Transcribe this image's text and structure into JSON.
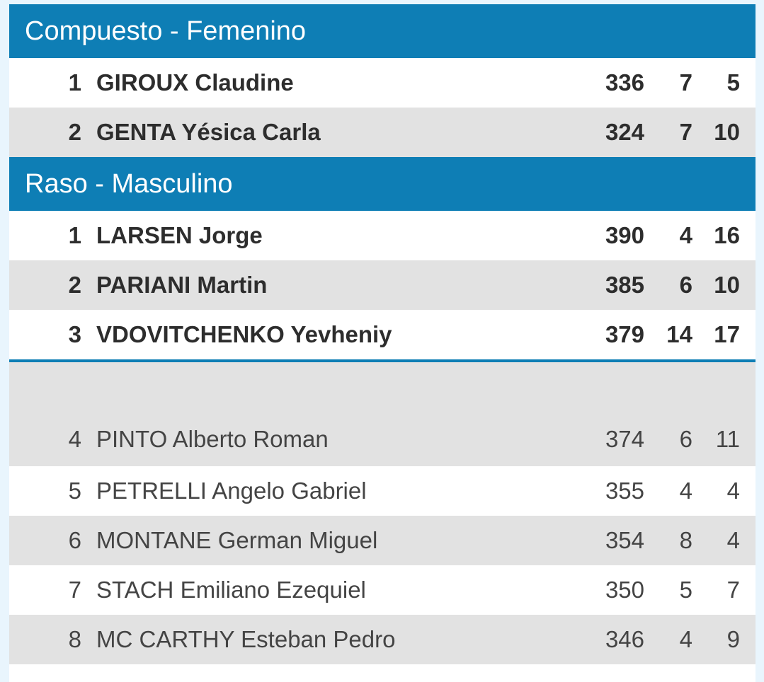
{
  "sections": [
    {
      "title": "Compuesto - Femenino",
      "rows": [
        {
          "rank": "1",
          "surname": "GIROUX",
          "given": "Claudine",
          "score": "336",
          "c2": "7",
          "c3": "5"
        },
        {
          "rank": "2",
          "surname": "GENTA",
          "given": "Yésica Carla",
          "score": "324",
          "c2": "7",
          "c3": "10"
        }
      ]
    },
    {
      "title": "Raso - Masculino",
      "rows": [
        {
          "rank": "1",
          "surname": "LARSEN",
          "given": "Jorge",
          "score": "390",
          "c2": "4",
          "c3": "16"
        },
        {
          "rank": "2",
          "surname": "PARIANI",
          "given": "Martin",
          "score": "385",
          "c2": "6",
          "c3": "10"
        },
        {
          "rank": "3",
          "surname": "VDOVITCHENKO",
          "given": "Yevheniy",
          "score": "379",
          "c2": "14",
          "c3": "17"
        }
      ]
    }
  ],
  "rest": [
    {
      "rank": "4",
      "surname": "PINTO",
      "given": "Alberto Roman",
      "score": "374",
      "c2": "6",
      "c3": "11"
    },
    {
      "rank": "5",
      "surname": "PETRELLI",
      "given": "Angelo Gabriel",
      "score": "355",
      "c2": "4",
      "c3": "4"
    },
    {
      "rank": "6",
      "surname": "MONTANE",
      "given": "German Miguel",
      "score": "354",
      "c2": "8",
      "c3": "4"
    },
    {
      "rank": "7",
      "surname": "STACH",
      "given": "Emiliano Ezequiel",
      "score": "350",
      "c2": "5",
      "c3": "7"
    },
    {
      "rank": "8",
      "surname": "MC CARTHY",
      "given": "Esteban Pedro",
      "score": "346",
      "c2": "4",
      "c3": "9"
    }
  ]
}
